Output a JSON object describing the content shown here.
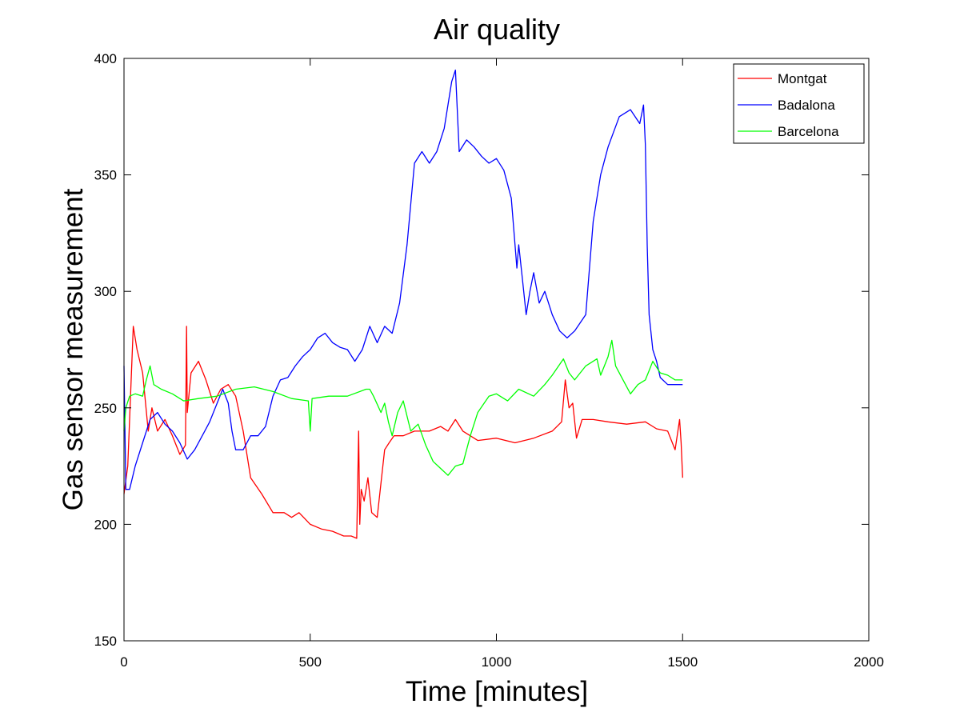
{
  "chart_data": {
    "type": "line",
    "title": "Air quality",
    "xlabel": "Time [minutes]",
    "ylabel": "Gas sensor measurement",
    "xlim": [
      0,
      2000
    ],
    "ylim": [
      150,
      400
    ],
    "xticks": [
      0,
      500,
      1000,
      1500,
      2000
    ],
    "yticks": [
      150,
      200,
      250,
      300,
      350,
      400
    ],
    "grid": false,
    "legend_position": "top-right",
    "series": [
      {
        "name": "Montgat",
        "color": "#ff0000",
        "x": [
          0,
          10,
          25,
          35,
          50,
          65,
          75,
          90,
          110,
          130,
          150,
          165,
          168,
          170,
          180,
          200,
          220,
          240,
          260,
          280,
          300,
          320,
          340,
          370,
          400,
          430,
          450,
          470,
          500,
          530,
          560,
          590,
          610,
          625,
          630,
          633,
          637,
          645,
          655,
          665,
          680,
          700,
          712,
          725,
          750,
          780,
          820,
          850,
          870,
          890,
          910,
          950,
          1000,
          1050,
          1100,
          1150,
          1175,
          1185,
          1195,
          1205,
          1215,
          1230,
          1260,
          1300,
          1350,
          1400,
          1430,
          1460,
          1480,
          1492,
          1496,
          1500
        ],
        "y": [
          213,
          225,
          285,
          275,
          265,
          240,
          250,
          240,
          245,
          238,
          230,
          234,
          285,
          248,
          265,
          270,
          262,
          252,
          258,
          260,
          255,
          240,
          220,
          213,
          205,
          205,
          203,
          205,
          200,
          198,
          197,
          195,
          195,
          194,
          240,
          200,
          215,
          210,
          220,
          205,
          203,
          232,
          235,
          238,
          238,
          240,
          240,
          242,
          240,
          245,
          240,
          236,
          237,
          235,
          237,
          240,
          244,
          262,
          250,
          252,
          237,
          245,
          245,
          244,
          243,
          244,
          241,
          240,
          232,
          245,
          235,
          220
        ]
      },
      {
        "name": "Badalona",
        "color": "#0000ff",
        "x": [
          0,
          5,
          15,
          30,
          50,
          70,
          90,
          110,
          130,
          150,
          170,
          190,
          210,
          230,
          250,
          265,
          280,
          290,
          300,
          320,
          340,
          360,
          380,
          400,
          420,
          440,
          460,
          480,
          500,
          520,
          540,
          560,
          580,
          600,
          620,
          640,
          660,
          680,
          700,
          720,
          740,
          760,
          780,
          800,
          820,
          840,
          860,
          880,
          890,
          900,
          920,
          940,
          960,
          980,
          1000,
          1020,
          1040,
          1055,
          1060,
          1070,
          1080,
          1090,
          1100,
          1115,
          1130,
          1150,
          1170,
          1190,
          1210,
          1240,
          1260,
          1280,
          1300,
          1330,
          1360,
          1385,
          1395,
          1400,
          1405,
          1410,
          1420,
          1430,
          1440,
          1460,
          1480,
          1500
        ],
        "y": [
          268,
          215,
          215,
          225,
          235,
          245,
          248,
          243,
          240,
          235,
          228,
          232,
          238,
          244,
          252,
          258,
          252,
          240,
          232,
          232,
          238,
          238,
          242,
          255,
          262,
          263,
          268,
          272,
          275,
          280,
          282,
          278,
          276,
          275,
          270,
          275,
          285,
          278,
          285,
          282,
          295,
          320,
          355,
          360,
          355,
          360,
          370,
          390,
          395,
          360,
          365,
          362,
          358,
          355,
          357,
          352,
          340,
          310,
          320,
          305,
          290,
          300,
          308,
          295,
          300,
          290,
          283,
          280,
          283,
          290,
          330,
          350,
          362,
          375,
          378,
          372,
          380,
          363,
          320,
          290,
          275,
          270,
          263,
          260,
          260,
          260
        ]
      },
      {
        "name": "Barcelona",
        "color": "#00ff00",
        "x": [
          0,
          5,
          15,
          30,
          50,
          60,
          70,
          80,
          100,
          130,
          160,
          200,
          250,
          300,
          350,
          400,
          450,
          495,
          500,
          505,
          550,
          600,
          650,
          660,
          670,
          690,
          700,
          710,
          720,
          735,
          750,
          770,
          790,
          810,
          830,
          850,
          870,
          890,
          910,
          930,
          950,
          980,
          1000,
          1030,
          1060,
          1100,
          1130,
          1150,
          1180,
          1195,
          1210,
          1240,
          1270,
          1280,
          1290,
          1300,
          1310,
          1320,
          1340,
          1360,
          1380,
          1400,
          1410,
          1420,
          1440,
          1460,
          1480,
          1500
        ],
        "y": [
          240,
          250,
          255,
          256,
          255,
          262,
          268,
          260,
          258,
          256,
          253,
          254,
          255,
          258,
          259,
          257,
          254,
          253,
          240,
          254,
          255,
          255,
          258,
          258,
          255,
          248,
          252,
          244,
          238,
          248,
          253,
          240,
          243,
          234,
          227,
          224,
          221,
          225,
          226,
          238,
          248,
          255,
          256,
          253,
          258,
          255,
          260,
          264,
          271,
          265,
          262,
          268,
          271,
          264,
          268,
          272,
          279,
          268,
          262,
          256,
          260,
          262,
          266,
          270,
          265,
          264,
          262,
          262
        ]
      }
    ]
  }
}
